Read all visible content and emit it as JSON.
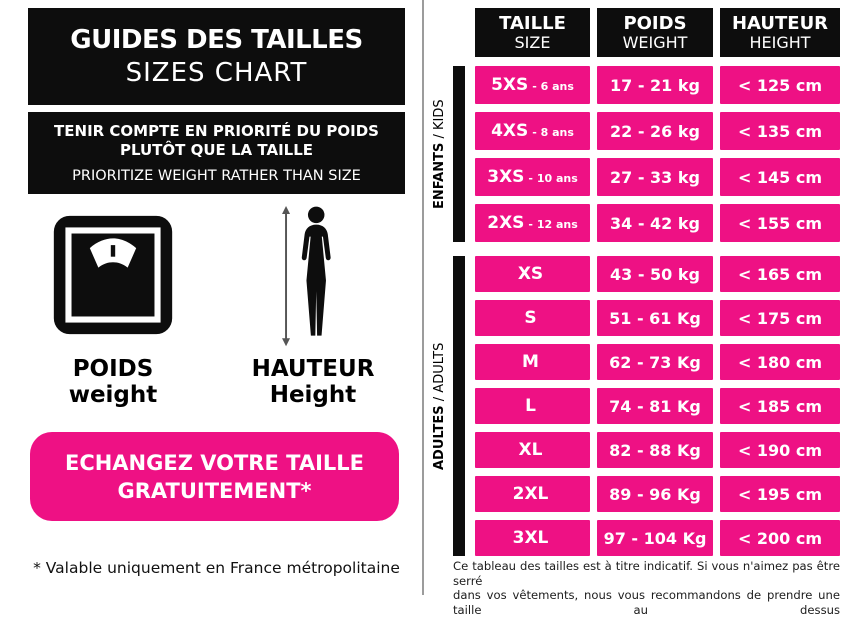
{
  "colors": {
    "pink": "#EE1184",
    "black": "#0D0D0D",
    "divider_gray": "#9C9C9C"
  },
  "icons": {
    "weight": "scale-icon",
    "height": "person-height-icon"
  },
  "left_panel": {
    "title_fr": "GUIDES DES TAILLES",
    "title_en": "SIZES CHART",
    "notice_fr_line1": "TENIR COMPTE EN PRIORITÉ DU POIDS",
    "notice_fr_line2": "PLUTÔT QUE LA TAILLE",
    "notice_en": "PRIORITIZE WEIGHT RATHER THAN SIZE",
    "weight_label_fr": "POIDS",
    "weight_label_en": "weight",
    "height_label_fr": "HAUTEUR",
    "height_label_en": "Height",
    "exchange_line1": "ECHANGEZ VOTRE TAILLE",
    "exchange_line2": "GRATUITEMENT*",
    "footnote": "* Valable uniquement en France métropolitaine"
  },
  "table": {
    "separator": " / ",
    "headers": [
      {
        "fr": "TAILLE",
        "en": "SIZE"
      },
      {
        "fr": "POIDS",
        "en": "WEIGHT"
      },
      {
        "fr": "HAUTEUR",
        "en": "HEIGHT"
      }
    ],
    "groups": [
      {
        "label_fr": "ENFANTS",
        "label_en": "KIDS",
        "rows": [
          {
            "size": "5XS",
            "age": "- 6 ans",
            "weight": "17 - 21 kg",
            "height": "< 125 cm"
          },
          {
            "size": "4XS",
            "age": "- 8 ans",
            "weight": "22 - 26 kg",
            "height": "< 135 cm"
          },
          {
            "size": "3XS",
            "age": "- 10 ans",
            "weight": "27 - 33 kg",
            "height": "< 145 cm"
          },
          {
            "size": "2XS",
            "age": "- 12 ans",
            "weight": "34 - 42 kg",
            "height": "< 155 cm"
          }
        ]
      },
      {
        "label_fr": "ADULTES",
        "label_en": "ADULTS",
        "rows": [
          {
            "size": "XS",
            "age": "",
            "weight": "43 - 50 kg",
            "height": "< 165 cm"
          },
          {
            "size": "S",
            "age": "",
            "weight": "51 - 61 Kg",
            "height": "< 175 cm"
          },
          {
            "size": "M",
            "age": "",
            "weight": "62 - 73 Kg",
            "height": "< 180 cm"
          },
          {
            "size": "L",
            "age": "",
            "weight": "74 - 81 Kg",
            "height": "< 185 cm"
          },
          {
            "size": "XL",
            "age": "",
            "weight": "82 - 88 Kg",
            "height": "< 190 cm"
          },
          {
            "size": "2XL",
            "age": "",
            "weight": "89 - 96 Kg",
            "height": "< 195 cm"
          },
          {
            "size": "3XL",
            "age": "",
            "weight": "97 - 104 Kg",
            "height": "< 200 cm"
          }
        ]
      }
    ],
    "disclaimer_line1": "Ce tableau des tailles est à titre indicatif. Si vous n'aimez pas être serré",
    "disclaimer_line2": "dans vos vêtements, nous vous recommandons de prendre une taille au dessus"
  }
}
